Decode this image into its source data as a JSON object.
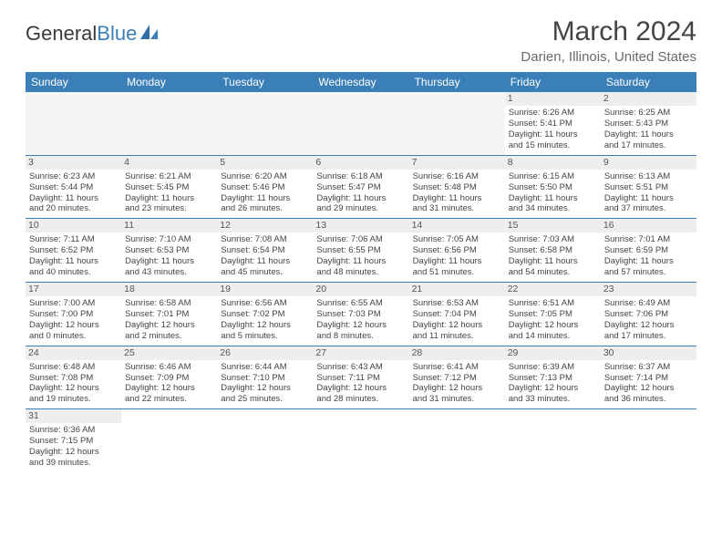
{
  "logo": {
    "general": "General",
    "blue": "Blue"
  },
  "title": "March 2024",
  "location": "Darien, Illinois, United States",
  "colors": {
    "header_bg": "#3b7fb8",
    "header_text": "#ffffff",
    "daynum_bg": "#eeeeee",
    "grid_line": "#3b7fb8",
    "text": "#444444",
    "location_text": "#6a6a6a"
  },
  "day_names": [
    "Sunday",
    "Monday",
    "Tuesday",
    "Wednesday",
    "Thursday",
    "Friday",
    "Saturday"
  ],
  "weeks": [
    [
      null,
      null,
      null,
      null,
      null,
      {
        "day": "1",
        "sunrise": "Sunrise: 6:26 AM",
        "sunset": "Sunset: 5:41 PM",
        "daylight1": "Daylight: 11 hours",
        "daylight2": "and 15 minutes."
      },
      {
        "day": "2",
        "sunrise": "Sunrise: 6:25 AM",
        "sunset": "Sunset: 5:43 PM",
        "daylight1": "Daylight: 11 hours",
        "daylight2": "and 17 minutes."
      }
    ],
    [
      {
        "day": "3",
        "sunrise": "Sunrise: 6:23 AM",
        "sunset": "Sunset: 5:44 PM",
        "daylight1": "Daylight: 11 hours",
        "daylight2": "and 20 minutes."
      },
      {
        "day": "4",
        "sunrise": "Sunrise: 6:21 AM",
        "sunset": "Sunset: 5:45 PM",
        "daylight1": "Daylight: 11 hours",
        "daylight2": "and 23 minutes."
      },
      {
        "day": "5",
        "sunrise": "Sunrise: 6:20 AM",
        "sunset": "Sunset: 5:46 PM",
        "daylight1": "Daylight: 11 hours",
        "daylight2": "and 26 minutes."
      },
      {
        "day": "6",
        "sunrise": "Sunrise: 6:18 AM",
        "sunset": "Sunset: 5:47 PM",
        "daylight1": "Daylight: 11 hours",
        "daylight2": "and 29 minutes."
      },
      {
        "day": "7",
        "sunrise": "Sunrise: 6:16 AM",
        "sunset": "Sunset: 5:48 PM",
        "daylight1": "Daylight: 11 hours",
        "daylight2": "and 31 minutes."
      },
      {
        "day": "8",
        "sunrise": "Sunrise: 6:15 AM",
        "sunset": "Sunset: 5:50 PM",
        "daylight1": "Daylight: 11 hours",
        "daylight2": "and 34 minutes."
      },
      {
        "day": "9",
        "sunrise": "Sunrise: 6:13 AM",
        "sunset": "Sunset: 5:51 PM",
        "daylight1": "Daylight: 11 hours",
        "daylight2": "and 37 minutes."
      }
    ],
    [
      {
        "day": "10",
        "sunrise": "Sunrise: 7:11 AM",
        "sunset": "Sunset: 6:52 PM",
        "daylight1": "Daylight: 11 hours",
        "daylight2": "and 40 minutes."
      },
      {
        "day": "11",
        "sunrise": "Sunrise: 7:10 AM",
        "sunset": "Sunset: 6:53 PM",
        "daylight1": "Daylight: 11 hours",
        "daylight2": "and 43 minutes."
      },
      {
        "day": "12",
        "sunrise": "Sunrise: 7:08 AM",
        "sunset": "Sunset: 6:54 PM",
        "daylight1": "Daylight: 11 hours",
        "daylight2": "and 45 minutes."
      },
      {
        "day": "13",
        "sunrise": "Sunrise: 7:06 AM",
        "sunset": "Sunset: 6:55 PM",
        "daylight1": "Daylight: 11 hours",
        "daylight2": "and 48 minutes."
      },
      {
        "day": "14",
        "sunrise": "Sunrise: 7:05 AM",
        "sunset": "Sunset: 6:56 PM",
        "daylight1": "Daylight: 11 hours",
        "daylight2": "and 51 minutes."
      },
      {
        "day": "15",
        "sunrise": "Sunrise: 7:03 AM",
        "sunset": "Sunset: 6:58 PM",
        "daylight1": "Daylight: 11 hours",
        "daylight2": "and 54 minutes."
      },
      {
        "day": "16",
        "sunrise": "Sunrise: 7:01 AM",
        "sunset": "Sunset: 6:59 PM",
        "daylight1": "Daylight: 11 hours",
        "daylight2": "and 57 minutes."
      }
    ],
    [
      {
        "day": "17",
        "sunrise": "Sunrise: 7:00 AM",
        "sunset": "Sunset: 7:00 PM",
        "daylight1": "Daylight: 12 hours",
        "daylight2": "and 0 minutes."
      },
      {
        "day": "18",
        "sunrise": "Sunrise: 6:58 AM",
        "sunset": "Sunset: 7:01 PM",
        "daylight1": "Daylight: 12 hours",
        "daylight2": "and 2 minutes."
      },
      {
        "day": "19",
        "sunrise": "Sunrise: 6:56 AM",
        "sunset": "Sunset: 7:02 PM",
        "daylight1": "Daylight: 12 hours",
        "daylight2": "and 5 minutes."
      },
      {
        "day": "20",
        "sunrise": "Sunrise: 6:55 AM",
        "sunset": "Sunset: 7:03 PM",
        "daylight1": "Daylight: 12 hours",
        "daylight2": "and 8 minutes."
      },
      {
        "day": "21",
        "sunrise": "Sunrise: 6:53 AM",
        "sunset": "Sunset: 7:04 PM",
        "daylight1": "Daylight: 12 hours",
        "daylight2": "and 11 minutes."
      },
      {
        "day": "22",
        "sunrise": "Sunrise: 6:51 AM",
        "sunset": "Sunset: 7:05 PM",
        "daylight1": "Daylight: 12 hours",
        "daylight2": "and 14 minutes."
      },
      {
        "day": "23",
        "sunrise": "Sunrise: 6:49 AM",
        "sunset": "Sunset: 7:06 PM",
        "daylight1": "Daylight: 12 hours",
        "daylight2": "and 17 minutes."
      }
    ],
    [
      {
        "day": "24",
        "sunrise": "Sunrise: 6:48 AM",
        "sunset": "Sunset: 7:08 PM",
        "daylight1": "Daylight: 12 hours",
        "daylight2": "and 19 minutes."
      },
      {
        "day": "25",
        "sunrise": "Sunrise: 6:46 AM",
        "sunset": "Sunset: 7:09 PM",
        "daylight1": "Daylight: 12 hours",
        "daylight2": "and 22 minutes."
      },
      {
        "day": "26",
        "sunrise": "Sunrise: 6:44 AM",
        "sunset": "Sunset: 7:10 PM",
        "daylight1": "Daylight: 12 hours",
        "daylight2": "and 25 minutes."
      },
      {
        "day": "27",
        "sunrise": "Sunrise: 6:43 AM",
        "sunset": "Sunset: 7:11 PM",
        "daylight1": "Daylight: 12 hours",
        "daylight2": "and 28 minutes."
      },
      {
        "day": "28",
        "sunrise": "Sunrise: 6:41 AM",
        "sunset": "Sunset: 7:12 PM",
        "daylight1": "Daylight: 12 hours",
        "daylight2": "and 31 minutes."
      },
      {
        "day": "29",
        "sunrise": "Sunrise: 6:39 AM",
        "sunset": "Sunset: 7:13 PM",
        "daylight1": "Daylight: 12 hours",
        "daylight2": "and 33 minutes."
      },
      {
        "day": "30",
        "sunrise": "Sunrise: 6:37 AM",
        "sunset": "Sunset: 7:14 PM",
        "daylight1": "Daylight: 12 hours",
        "daylight2": "and 36 minutes."
      }
    ],
    [
      {
        "day": "31",
        "sunrise": "Sunrise: 6:36 AM",
        "sunset": "Sunset: 7:15 PM",
        "daylight1": "Daylight: 12 hours",
        "daylight2": "and 39 minutes."
      },
      null,
      null,
      null,
      null,
      null,
      null
    ]
  ]
}
